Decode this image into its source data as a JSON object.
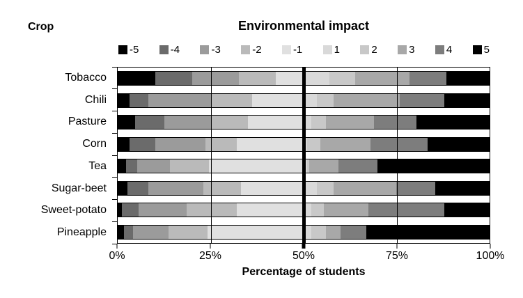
{
  "header": {
    "crop_label": "Crop"
  },
  "chart_data": {
    "type": "bar",
    "stacked": true,
    "orientation": "horizontal",
    "title": "Environmental impact",
    "xlabel": "Percentage of students",
    "row_header": "Crop",
    "categories": [
      "Tobacco",
      "Chili",
      "Pasture",
      "Corn",
      "Tea",
      "Sugar-beet",
      "Sweet-potato",
      "Pineapple"
    ],
    "x_ticks": [
      "0%",
      "25%",
      "50%",
      "75%",
      "100%"
    ],
    "xlim": [
      0,
      100
    ],
    "grid_x_percent": [
      25,
      75
    ],
    "reference_line_x": 50,
    "legend_position": "top",
    "series": [
      {
        "name": "-5",
        "color": "#000000",
        "values": [
          10,
          3,
          4.5,
          3,
          2,
          2.5,
          1,
          1.5
        ]
      },
      {
        "name": "-4",
        "color": "#6b6b6b",
        "values": [
          10,
          5,
          8,
          7,
          3,
          5.5,
          4.5,
          2.5
        ]
      },
      {
        "name": "-3",
        "color": "#9b9b9b",
        "values": [
          12.5,
          17,
          12.5,
          13.5,
          9,
          15,
          13,
          9.5
        ]
      },
      {
        "name": "-2",
        "color": "#bababa",
        "values": [
          10,
          11,
          10,
          8.5,
          10.5,
          10,
          13.5,
          10.5
        ]
      },
      {
        "name": "-1",
        "color": "#e0e0e0",
        "values": [
          7.5,
          14,
          15,
          18,
          25.5,
          17,
          18,
          26
        ]
      },
      {
        "name": "1",
        "color": "#d9d9d9",
        "values": [
          7,
          3.5,
          2,
          1,
          1,
          3.5,
          2,
          2
        ]
      },
      {
        "name": "2",
        "color": "#c8c8c8",
        "values": [
          7,
          4.5,
          4,
          3.5,
          0.5,
          4.5,
          3.5,
          4
        ]
      },
      {
        "name": "3",
        "color": "#a8a8a8",
        "values": [
          14.5,
          18,
          13,
          13.5,
          8,
          17,
          12,
          4
        ]
      },
      {
        "name": "4",
        "color": "#7d7d7d",
        "values": [
          10,
          12,
          11.5,
          15.5,
          10.5,
          10.5,
          20.5,
          7
        ]
      },
      {
        "name": "5",
        "color": "#000000",
        "values": [
          11.5,
          12,
          19.5,
          16.5,
          30,
          14.5,
          12,
          33
        ]
      }
    ]
  }
}
